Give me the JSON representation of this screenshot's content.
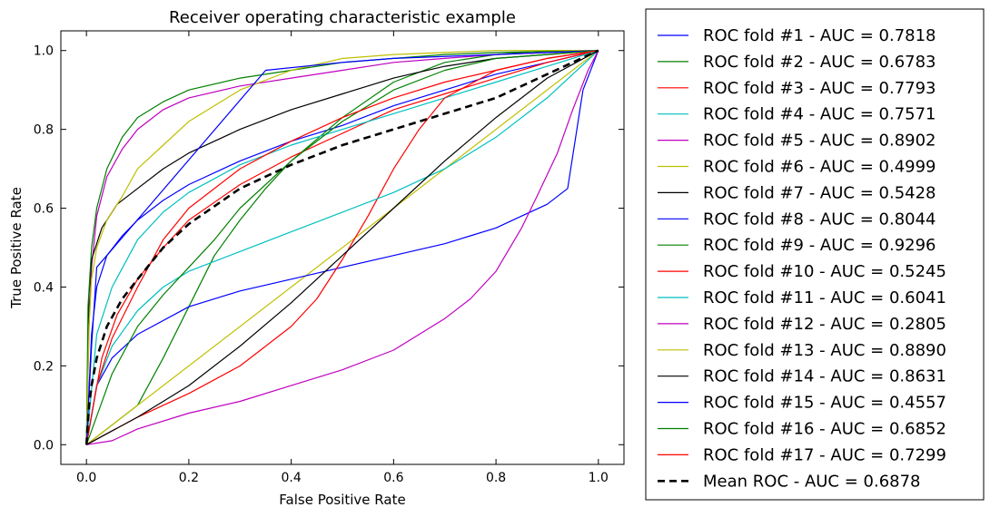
{
  "chart_data": {
    "type": "line",
    "title": "Receiver operating characteristic example",
    "xlabel": "False Positive Rate",
    "ylabel": "True Positive Rate",
    "xlim": [
      -0.05,
      1.05
    ],
    "ylim": [
      -0.05,
      1.05
    ],
    "xticks": [
      "0.0",
      "0.2",
      "0.4",
      "0.6",
      "0.8",
      "1.0"
    ],
    "yticks": [
      "0.0",
      "0.2",
      "0.4",
      "0.6",
      "0.8",
      "1.0"
    ],
    "grid": false,
    "legend_position": "outside-right",
    "series": [
      {
        "name": "ROC fold #1 - AUC = 0.7818",
        "color": "#0000ff",
        "style": "solid",
        "x": [
          0,
          0.01,
          0.02,
          0.04,
          0.07,
          0.1,
          0.15,
          0.2,
          0.3,
          0.4,
          0.5,
          0.6,
          0.7,
          0.8,
          0.9,
          1.0
        ],
        "y": [
          0,
          0.28,
          0.4,
          0.48,
          0.53,
          0.57,
          0.62,
          0.66,
          0.72,
          0.77,
          0.81,
          0.86,
          0.9,
          0.94,
          0.97,
          1.0
        ]
      },
      {
        "name": "ROC fold #2 - AUC = 0.6783",
        "color": "#008000",
        "style": "solid",
        "x": [
          0,
          0.1,
          0.15,
          0.2,
          0.25,
          0.3,
          0.35,
          0.4,
          0.5,
          0.6,
          0.7,
          0.8,
          0.9,
          1.0
        ],
        "y": [
          0,
          0.1,
          0.22,
          0.35,
          0.48,
          0.57,
          0.65,
          0.72,
          0.83,
          0.92,
          0.97,
          0.99,
          1.0,
          1.0
        ]
      },
      {
        "name": "ROC fold #3 - AUC = 0.7793",
        "color": "#ff0000",
        "style": "solid",
        "x": [
          0,
          0.03,
          0.06,
          0.1,
          0.15,
          0.2,
          0.3,
          0.4,
          0.5,
          0.6,
          0.7,
          0.8,
          0.9,
          1.0
        ],
        "y": [
          0,
          0.22,
          0.33,
          0.42,
          0.5,
          0.57,
          0.66,
          0.73,
          0.79,
          0.85,
          0.89,
          0.93,
          0.97,
          1.0
        ]
      },
      {
        "name": "ROC fold #4 - AUC = 0.7571",
        "color": "#00bfbf",
        "style": "solid",
        "x": [
          0,
          0.02,
          0.05,
          0.1,
          0.15,
          0.2,
          0.3,
          0.4,
          0.5,
          0.6,
          0.7,
          0.8,
          0.9,
          1.0
        ],
        "y": [
          0,
          0.28,
          0.4,
          0.52,
          0.59,
          0.64,
          0.71,
          0.76,
          0.8,
          0.84,
          0.88,
          0.92,
          0.96,
          1.0
        ]
      },
      {
        "name": "ROC fold #5 - AUC = 0.8902",
        "color": "#bf00bf",
        "style": "solid",
        "x": [
          0,
          0.005,
          0.01,
          0.02,
          0.04,
          0.07,
          0.1,
          0.15,
          0.2,
          0.3,
          0.4,
          0.5,
          0.6,
          0.7,
          0.8,
          0.9,
          1.0
        ],
        "y": [
          0,
          0.3,
          0.45,
          0.58,
          0.68,
          0.75,
          0.8,
          0.85,
          0.88,
          0.91,
          0.93,
          0.95,
          0.97,
          0.98,
          0.99,
          0.995,
          1.0
        ]
      },
      {
        "name": "ROC fold #6 - AUC = 0.4999",
        "color": "#bfbf00",
        "style": "solid",
        "x": [
          0,
          1.0
        ],
        "y": [
          0,
          1.0
        ]
      },
      {
        "name": "ROC fold #7 - AUC = 0.5428",
        "color": "#000000",
        "style": "solid",
        "x": [
          0,
          0.005,
          0.01,
          0.03,
          0.06,
          0.1,
          0.15,
          0.2,
          0.3,
          0.4,
          0.5,
          0.6,
          0.7,
          0.8,
          0.9,
          1.0
        ],
        "y": [
          0,
          0.38,
          0.47,
          0.55,
          0.61,
          0.65,
          0.7,
          0.74,
          0.8,
          0.85,
          0.89,
          0.93,
          0.96,
          0.98,
          0.99,
          1.0
        ]
      },
      {
        "name": "ROC fold #8 - AUC = 0.8044",
        "color": "#0000ff",
        "style": "solid",
        "x": [
          0,
          0.02,
          0.05,
          0.1,
          0.2,
          0.3,
          0.4,
          0.5,
          0.6,
          0.7,
          0.75,
          0.8,
          0.85,
          0.9,
          0.94,
          0.97,
          1.0
        ],
        "y": [
          0,
          0.15,
          0.22,
          0.28,
          0.35,
          0.39,
          0.42,
          0.45,
          0.48,
          0.51,
          0.53,
          0.55,
          0.58,
          0.61,
          0.65,
          0.9,
          1.0
        ]
      },
      {
        "name": "ROC fold #9 - AUC = 0.9296",
        "color": "#008000",
        "style": "solid",
        "x": [
          0,
          0.003,
          0.01,
          0.02,
          0.04,
          0.07,
          0.1,
          0.15,
          0.2,
          0.3,
          0.4,
          0.5,
          0.6,
          0.7,
          0.8,
          0.9,
          1.0
        ],
        "y": [
          0,
          0.35,
          0.5,
          0.6,
          0.7,
          0.78,
          0.83,
          0.87,
          0.9,
          0.93,
          0.95,
          0.97,
          0.98,
          0.99,
          0.995,
          0.998,
          1.0
        ]
      },
      {
        "name": "ROC fold #10 - AUC = 0.5245",
        "color": "#ff0000",
        "style": "solid",
        "x": [
          0,
          0.1,
          0.2,
          0.3,
          0.35,
          0.4,
          0.45,
          0.5,
          0.55,
          0.6,
          0.65,
          0.7,
          0.8,
          0.9,
          1.0
        ],
        "y": [
          0,
          0.07,
          0.13,
          0.2,
          0.25,
          0.3,
          0.37,
          0.47,
          0.58,
          0.7,
          0.8,
          0.88,
          0.95,
          0.98,
          1.0
        ]
      },
      {
        "name": "ROC fold #11 - AUC = 0.6041",
        "color": "#00bfbf",
        "style": "solid",
        "x": [
          0,
          0.02,
          0.05,
          0.1,
          0.15,
          0.2,
          0.3,
          0.4,
          0.5,
          0.6,
          0.7,
          0.8,
          0.9,
          1.0
        ],
        "y": [
          0,
          0.15,
          0.25,
          0.34,
          0.4,
          0.44,
          0.49,
          0.54,
          0.59,
          0.64,
          0.7,
          0.78,
          0.88,
          1.0
        ]
      },
      {
        "name": "ROC fold #12 - AUC = 0.2805",
        "color": "#bf00bf",
        "style": "solid",
        "x": [
          0,
          0.05,
          0.1,
          0.2,
          0.3,
          0.4,
          0.5,
          0.6,
          0.7,
          0.75,
          0.8,
          0.85,
          0.88,
          0.92,
          0.95,
          0.98,
          1.0
        ],
        "y": [
          0,
          0.01,
          0.04,
          0.08,
          0.11,
          0.15,
          0.19,
          0.24,
          0.32,
          0.37,
          0.44,
          0.55,
          0.63,
          0.74,
          0.85,
          0.95,
          1.0
        ]
      },
      {
        "name": "ROC fold #13 - AUC = 0.8890",
        "color": "#bfbf00",
        "style": "solid",
        "x": [
          0,
          0.005,
          0.01,
          0.02,
          0.04,
          0.07,
          0.1,
          0.15,
          0.2,
          0.3,
          0.4,
          0.5,
          0.6,
          0.7,
          0.8,
          0.9,
          1.0
        ],
        "y": [
          0,
          0.3,
          0.42,
          0.5,
          0.57,
          0.63,
          0.7,
          0.76,
          0.82,
          0.9,
          0.95,
          0.98,
          0.99,
          0.995,
          1.0,
          1.0,
          1.0
        ]
      },
      {
        "name": "ROC fold #14 - AUC = 0.8631",
        "color": "#000000",
        "style": "solid",
        "x": [
          0,
          0.1,
          0.2,
          0.3,
          0.4,
          0.5,
          0.6,
          0.7,
          0.8,
          0.9,
          1.0
        ],
        "y": [
          0,
          0.07,
          0.15,
          0.25,
          0.36,
          0.48,
          0.6,
          0.72,
          0.83,
          0.93,
          1.0
        ]
      },
      {
        "name": "ROC fold #15 - AUC = 0.4557",
        "color": "#0000ff",
        "style": "solid",
        "x": [
          0,
          0.01,
          0.02,
          0.35,
          0.5,
          0.6,
          0.8,
          1.0
        ],
        "y": [
          0,
          0.25,
          0.45,
          0.95,
          0.97,
          0.98,
          0.99,
          1.0
        ]
      },
      {
        "name": "ROC fold #16 - AUC = 0.6852",
        "color": "#008000",
        "style": "solid",
        "x": [
          0,
          0.05,
          0.1,
          0.15,
          0.2,
          0.25,
          0.3,
          0.4,
          0.5,
          0.6,
          0.7,
          0.8,
          0.9,
          1.0
        ],
        "y": [
          0,
          0.18,
          0.3,
          0.38,
          0.45,
          0.52,
          0.6,
          0.72,
          0.82,
          0.9,
          0.95,
          0.98,
          0.99,
          1.0
        ]
      },
      {
        "name": "ROC fold #17 - AUC = 0.7299",
        "color": "#ff0000",
        "style": "solid",
        "x": [
          0,
          0.02,
          0.05,
          0.1,
          0.15,
          0.2,
          0.3,
          0.4,
          0.5,
          0.6,
          0.7,
          0.8,
          0.9,
          1.0
        ],
        "y": [
          0,
          0.15,
          0.27,
          0.4,
          0.52,
          0.6,
          0.7,
          0.77,
          0.83,
          0.88,
          0.92,
          0.95,
          0.98,
          1.0
        ]
      },
      {
        "name": "Mean ROC  - AUC = 0.6878",
        "color": "#000000",
        "style": "dashed",
        "x": [
          0,
          0.005,
          0.01,
          0.02,
          0.04,
          0.07,
          0.1,
          0.15,
          0.2,
          0.3,
          0.4,
          0.5,
          0.6,
          0.7,
          0.8,
          0.9,
          1.0
        ],
        "y": [
          0,
          0.1,
          0.15,
          0.22,
          0.3,
          0.37,
          0.42,
          0.5,
          0.56,
          0.65,
          0.71,
          0.76,
          0.8,
          0.84,
          0.88,
          0.94,
          1.0
        ]
      }
    ]
  }
}
